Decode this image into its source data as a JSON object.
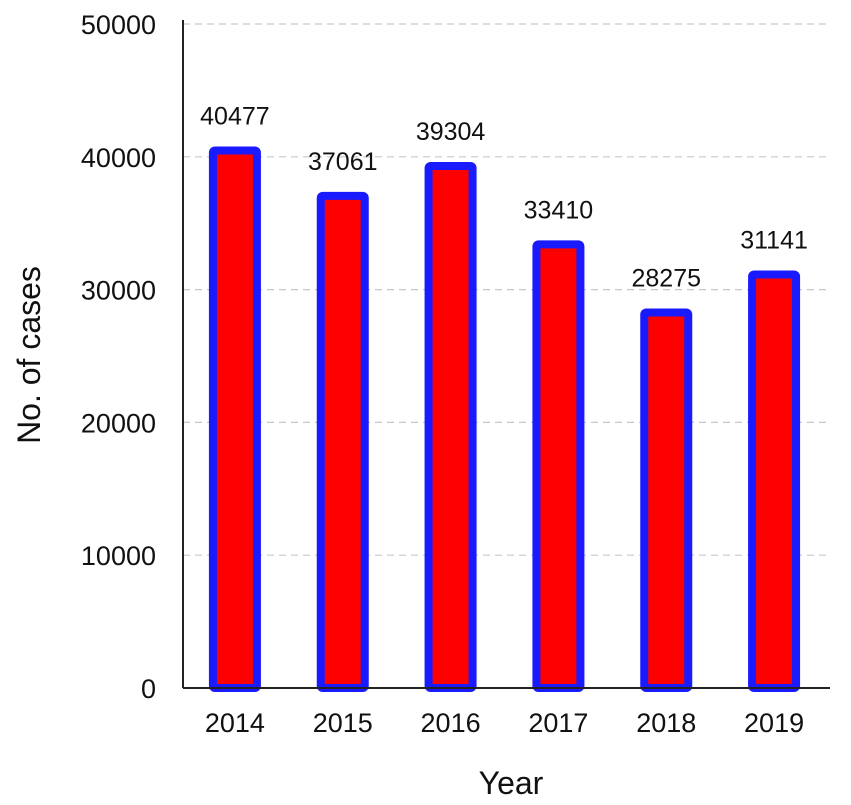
{
  "chart_data": {
    "type": "bar",
    "categories": [
      "2014",
      "2015",
      "2016",
      "2017",
      "2018",
      "2019"
    ],
    "values": [
      40477,
      37061,
      39304,
      33410,
      28275,
      31141
    ],
    "data_labels": [
      "40477",
      "37061",
      "39304",
      "33410",
      "28275",
      "31141"
    ],
    "xlabel": "Year",
    "ylabel": "No. of cases",
    "ylim": [
      0,
      50000
    ],
    "yticks": [
      0,
      10000,
      20000,
      30000,
      40000,
      50000
    ],
    "ytick_labels": [
      "0",
      "10000",
      "20000",
      "30000",
      "40000",
      "50000"
    ],
    "grid": true,
    "legend": "none"
  },
  "colors": {
    "bar_fill": "#ff0000",
    "bar_border": "#1a1aff",
    "grid": "#c8c8c8",
    "axis": "#222222"
  }
}
